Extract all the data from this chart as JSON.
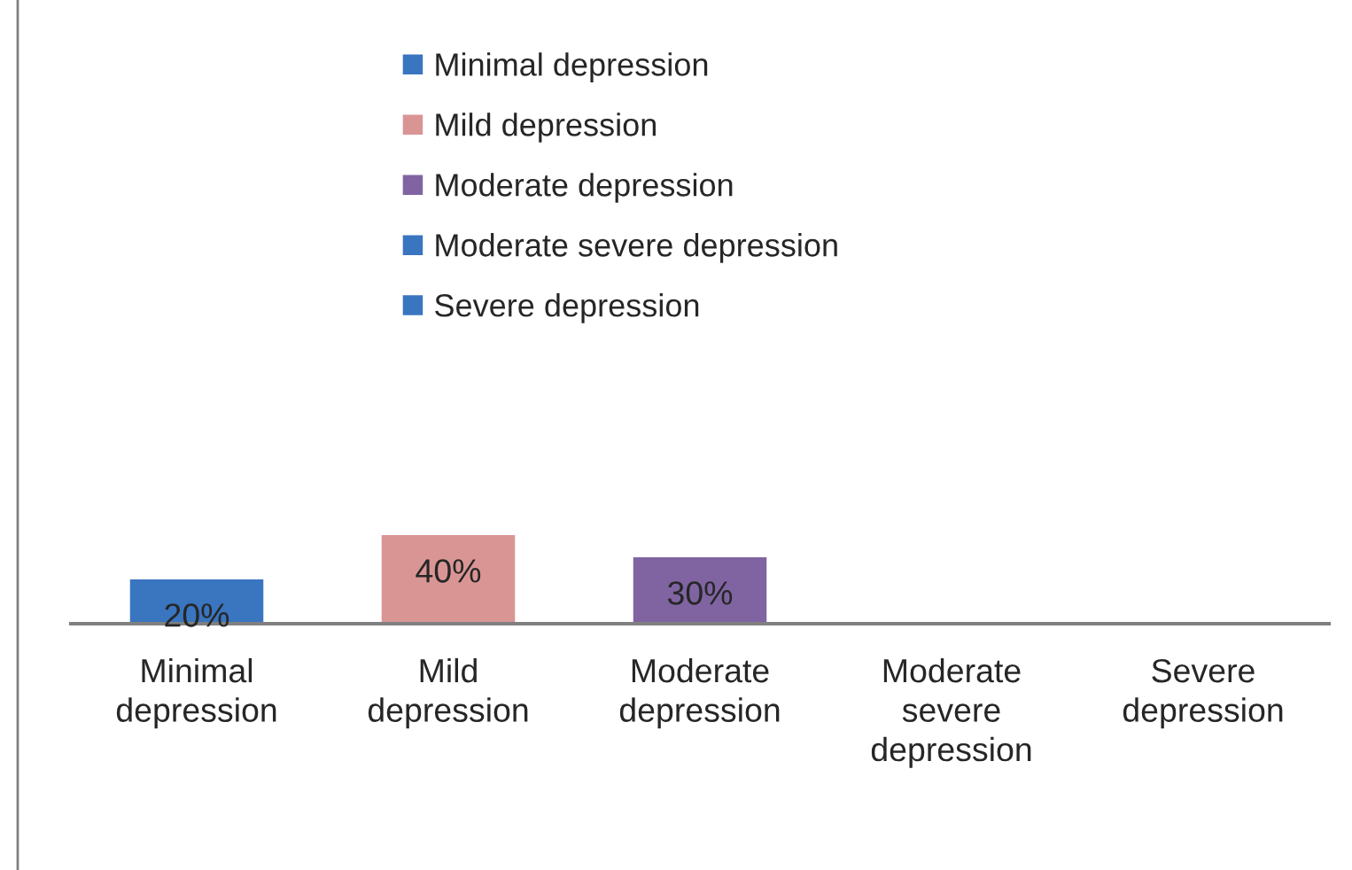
{
  "chart_data": {
    "type": "bar",
    "categories": [
      "Minimal depression",
      "Mild depression",
      "Moderate depression",
      "Moderate severe depression",
      "Severe depression"
    ],
    "series": [
      {
        "name": "Minimal depression",
        "color": "#3a75c0",
        "values": [
          20,
          null,
          null,
          null,
          null
        ],
        "value_labels": [
          "20%",
          null,
          null,
          null,
          null
        ]
      },
      {
        "name": "Mild depression",
        "color": "#d99594",
        "values": [
          null,
          40,
          null,
          null,
          null
        ],
        "value_labels": [
          null,
          "40%",
          null,
          null,
          null
        ]
      },
      {
        "name": "Moderate depression",
        "color": "#8064a2",
        "values": [
          null,
          null,
          30,
          null,
          null
        ],
        "value_labels": [
          null,
          null,
          "30%",
          null,
          null
        ]
      },
      {
        "name": "Moderate severe depression",
        "color": "#3a75c0",
        "values": [
          null,
          null,
          null,
          null,
          null
        ]
      },
      {
        "name": "Severe depression",
        "color": "#3a75c0",
        "values": [
          null,
          null,
          null,
          null,
          null
        ]
      }
    ],
    "legend": "top",
    "grid": false
  }
}
